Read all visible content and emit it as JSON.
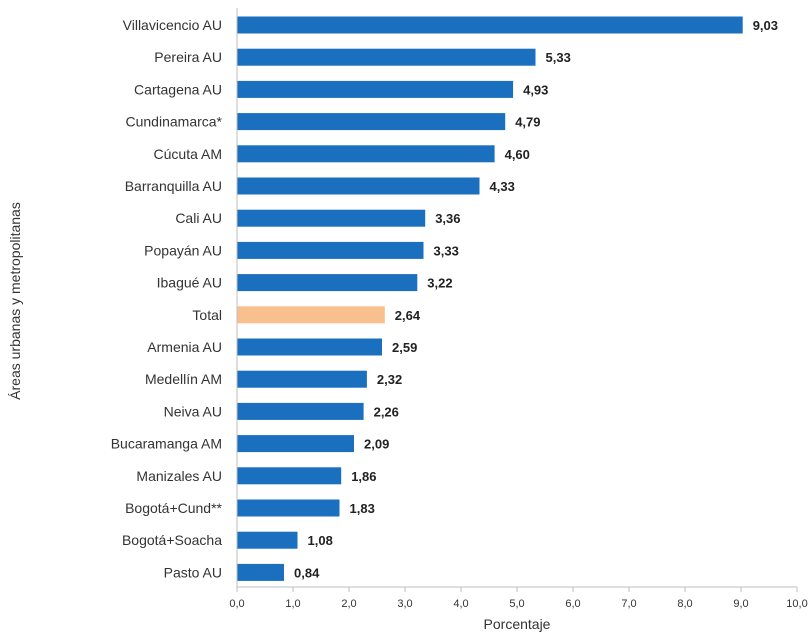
{
  "chart_data": {
    "type": "bar",
    "orientation": "horizontal",
    "categories": [
      "Villavicencio AU",
      "Pereira AU",
      "Cartagena AU",
      "Cundinamarca*",
      "Cúcuta AM",
      "Barranquilla AU",
      "Cali AU",
      "Popayán AU",
      "Ibagué AU",
      "Total",
      "Armenia AU",
      "Medellín AM",
      "Neiva AU",
      "Bucaramanga AM",
      "Manizales AU",
      "Bogotá+Cund**",
      "Bogotá+Soacha",
      "Pasto AU"
    ],
    "values": [
      9.03,
      5.33,
      4.93,
      4.79,
      4.6,
      4.33,
      3.36,
      3.33,
      3.22,
      2.64,
      2.59,
      2.32,
      2.26,
      2.09,
      1.86,
      1.83,
      1.08,
      0.84
    ],
    "value_labels": [
      "9,03",
      "5,33",
      "4,93",
      "4,79",
      "4,60",
      "4,33",
      "3,36",
      "3,33",
      "3,22",
      "2,64",
      "2,59",
      "2,32",
      "2,26",
      "2,09",
      "1,86",
      "1,83",
      "1,08",
      "0,84"
    ],
    "highlight_category": "Total",
    "xlabel": "Porcentaje",
    "ylabel": "Áreas urbanas y metropolitanas",
    "xlim": [
      0,
      10
    ],
    "xticks": [
      "0,0",
      "1,0",
      "2,0",
      "3,0",
      "4,0",
      "5,0",
      "6,0",
      "7,0",
      "8,0",
      "9,0",
      "10,0"
    ],
    "grid": false,
    "colors": {
      "bar": "#1a6fbf",
      "highlight": "#f8c08e",
      "axis": "#bfbfbf"
    }
  }
}
